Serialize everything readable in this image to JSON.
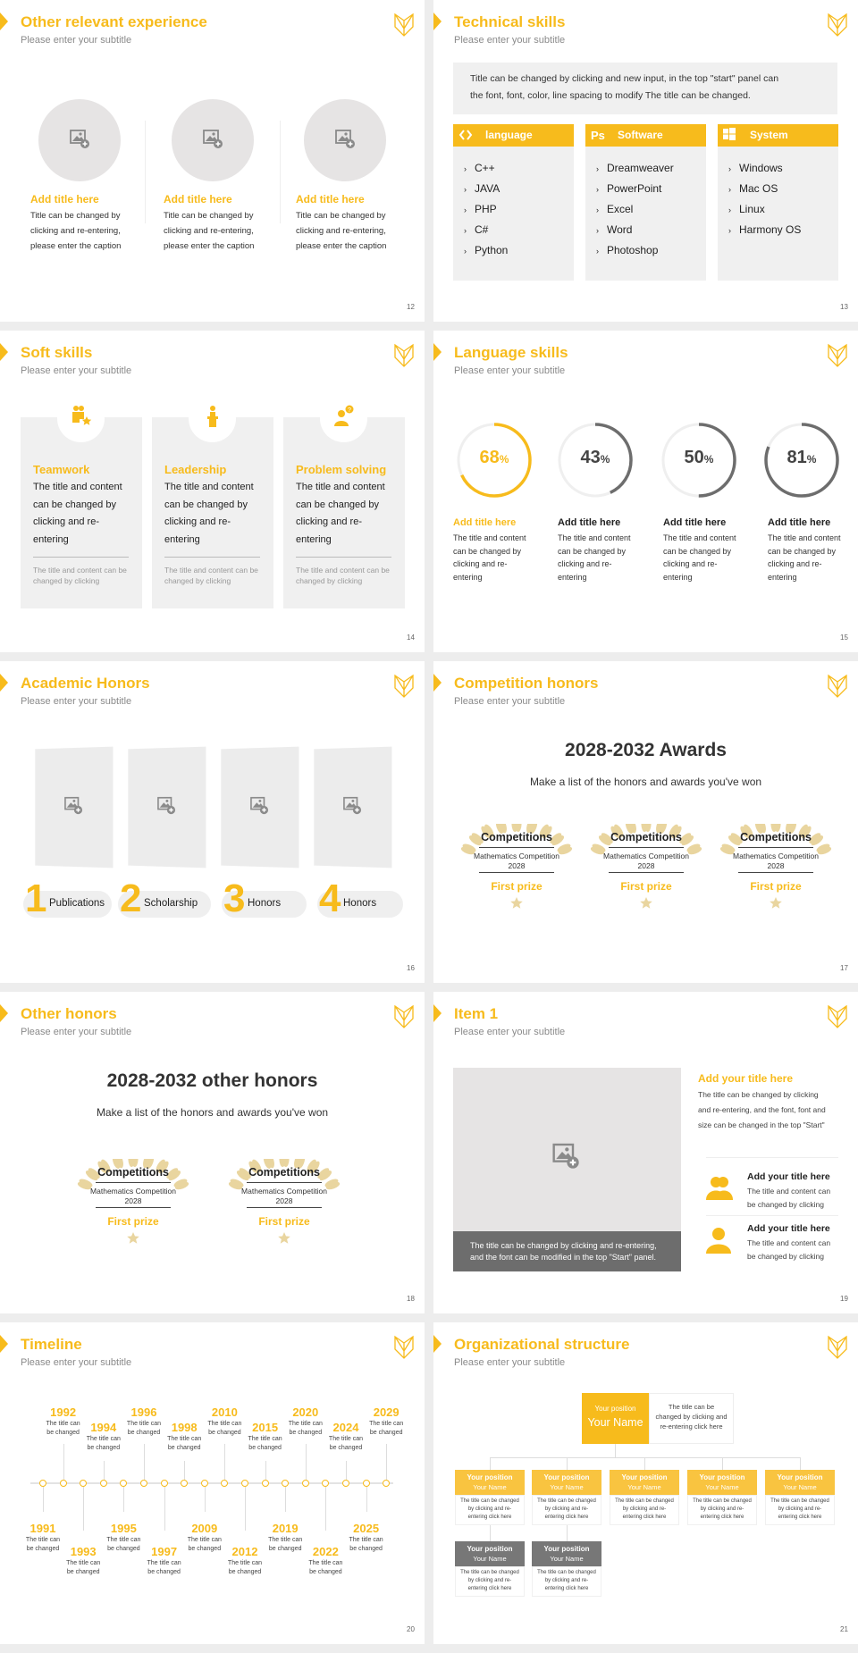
{
  "colors": {
    "accent": "#f7bb1c",
    "panel": "#f0f0f0",
    "dark": "#6d6d6d",
    "laurel": "#e9d59f"
  },
  "slides": [
    {
      "number": "12",
      "title": "Other relevant experience",
      "subtitle": "Please enter your subtitle"
    },
    {
      "number": "13",
      "title": "Technical skills",
      "subtitle": "Please enter your subtitle"
    },
    {
      "number": "14",
      "title": "Soft skills",
      "subtitle": "Please enter your subtitle"
    },
    {
      "number": "15",
      "title": "Language skills",
      "subtitle": "Please enter your subtitle"
    },
    {
      "number": "16",
      "title": "Academic Honors",
      "subtitle": "Please enter your subtitle"
    },
    {
      "number": "17",
      "title": "Competition honors",
      "subtitle": "Please enter your subtitle"
    },
    {
      "number": "18",
      "title": "Other honors",
      "subtitle": "Please enter your subtitle"
    },
    {
      "number": "19",
      "title": "Item 1",
      "subtitle": "Please enter your subtitle"
    },
    {
      "number": "20",
      "title": "Timeline",
      "subtitle": "Please enter your subtitle"
    },
    {
      "number": "21",
      "title": "Organizational structure",
      "subtitle": "Please enter your subtitle"
    }
  ],
  "s12": {
    "items": [
      {
        "title": "Add title here",
        "body": [
          "Title can be changed by",
          "clicking and re-entering,",
          "please enter the caption"
        ]
      },
      {
        "title": "Add title here",
        "body": [
          "Title can be changed by",
          "clicking and re-entering,",
          "please enter the caption"
        ]
      },
      {
        "title": "Add title here",
        "body": [
          "Title can be changed by",
          "clicking and re-entering,",
          "please enter the caption"
        ]
      }
    ]
  },
  "s13": {
    "intro": [
      "Title can be changed by clicking and new input, in the top \"start\" panel can",
      "the font, font, color, line spacing to modify The title can be changed."
    ],
    "columns": [
      {
        "label": "language",
        "icon": "code-icon",
        "items": [
          "C++",
          "JAVA",
          "PHP",
          "C#",
          "Python"
        ]
      },
      {
        "label": "Software",
        "icon": "photoshop-icon",
        "items": [
          "Dreamweaver",
          "PowerPoint",
          "Excel",
          "Word",
          "Photoshop"
        ]
      },
      {
        "label": "System",
        "icon": "windows-icon",
        "items": [
          "Windows",
          "Mac OS",
          "Linux",
          "Harmony OS"
        ]
      }
    ]
  },
  "s14": {
    "cards": [
      {
        "title": "Teamwork",
        "icon": "teamwork-icon",
        "body": [
          "The title and content",
          "can be changed by",
          "clicking and re-",
          "entering"
        ],
        "note": [
          "The title and content can be",
          "changed by clicking"
        ]
      },
      {
        "title": "Leadership",
        "icon": "podium-speaker-icon",
        "body": [
          "The title and content",
          "can be changed by",
          "clicking and re-",
          "entering"
        ],
        "note": [
          "The title and content can be",
          "changed by clicking"
        ]
      },
      {
        "title": "Problem solving",
        "icon": "question-person-icon",
        "body": [
          "The title and content",
          "can be changed by",
          "clicking and re-",
          "entering"
        ],
        "note": [
          "The title and content can be",
          "changed by clicking"
        ]
      }
    ]
  },
  "s15": {
    "skills": [
      {
        "percent": 68,
        "value": "68",
        "unit": "%",
        "title": "Add title here",
        "highlight": true,
        "body": [
          "The title and content",
          "can be changed by",
          "clicking and re-",
          "entering"
        ]
      },
      {
        "percent": 43,
        "value": "43",
        "unit": "%",
        "title": "Add title here",
        "highlight": false,
        "body": [
          "The title and content",
          "can be changed by",
          "clicking and re-",
          "entering"
        ]
      },
      {
        "percent": 50,
        "value": "50",
        "unit": "%",
        "title": "Add title here",
        "highlight": false,
        "body": [
          "The title and content",
          "can be changed by",
          "clicking and re-",
          "entering"
        ]
      },
      {
        "percent": 81,
        "value": "81",
        "unit": "%",
        "title": "Add title here",
        "highlight": false,
        "body": [
          "The title and content",
          "can be changed by",
          "clicking and re-",
          "entering"
        ]
      }
    ]
  },
  "s16": {
    "items": [
      {
        "num": "1",
        "label": "Publications"
      },
      {
        "num": "2",
        "label": "Scholarship"
      },
      {
        "num": "3",
        "label": "Honors"
      },
      {
        "num": "4",
        "label": "Honors"
      }
    ]
  },
  "s17": {
    "heading": "2028-2032 Awards",
    "sub": "Make a list of the honors and awards you've won",
    "awards": [
      {
        "category": "Competitions",
        "name": "Mathematics Competition",
        "year": "2028",
        "prize": "First prize"
      },
      {
        "category": "Competitions",
        "name": "Mathematics Competition",
        "year": "2028",
        "prize": "First prize"
      },
      {
        "category": "Competitions",
        "name": "Mathematics Competition",
        "year": "2028",
        "prize": "First prize"
      }
    ]
  },
  "s18": {
    "heading": "2028-2032 other honors",
    "sub": "Make a list of the honors and awards you've won",
    "awards": [
      {
        "category": "Competitions",
        "name": "Mathematics Competition",
        "year": "2028",
        "prize": "First prize"
      },
      {
        "category": "Competitions",
        "name": "Mathematics Competition",
        "year": "2028",
        "prize": "First prize"
      }
    ]
  },
  "s19": {
    "caption": [
      "The title can be changed by clicking and re-entering,",
      "and the font can be modified in the top \"Start\" panel."
    ],
    "title": "Add your title here",
    "body": [
      "The title can be changed by clicking",
      "and re-entering, and the font, font and",
      "size can be changed in the top \"Start\""
    ],
    "items": [
      {
        "icon": "users-icon",
        "title": "Add your title here",
        "body": [
          "The title and content can",
          "be changed by clicking"
        ]
      },
      {
        "icon": "user-icon",
        "title": "Add your title here",
        "body": [
          "The title and content can",
          "be changed by clicking"
        ]
      }
    ]
  },
  "s20": {
    "events": [
      {
        "year": "1991",
        "text": [
          "The title can",
          "be changed"
        ]
      },
      {
        "year": "1992",
        "text": [
          "The title can",
          "be changed"
        ]
      },
      {
        "year": "1993",
        "text": [
          "The title can",
          "be changed"
        ]
      },
      {
        "year": "1994",
        "text": [
          "The title can",
          "be changed"
        ]
      },
      {
        "year": "1995",
        "text": [
          "The title can",
          "be changed"
        ]
      },
      {
        "year": "1996",
        "text": [
          "The title can",
          "be changed"
        ]
      },
      {
        "year": "1997",
        "text": [
          "The title can",
          "be changed"
        ]
      },
      {
        "year": "1998",
        "text": [
          "The title can",
          "be changed"
        ]
      },
      {
        "year": "2009",
        "text": [
          "The title can",
          "be changed"
        ]
      },
      {
        "year": "2010",
        "text": [
          "The title can",
          "be changed"
        ]
      },
      {
        "year": "2012",
        "text": [
          "The title can",
          "be changed"
        ]
      },
      {
        "year": "2015",
        "text": [
          "The title can",
          "be changed"
        ]
      },
      {
        "year": "2019",
        "text": [
          "The title can",
          "be changed"
        ]
      },
      {
        "year": "2020",
        "text": [
          "The title can",
          "be changed"
        ]
      },
      {
        "year": "2022",
        "text": [
          "The title can",
          "be changed"
        ]
      },
      {
        "year": "2024",
        "text": [
          "The title can",
          "be changed"
        ]
      },
      {
        "year": "2025",
        "text": [
          "The title can",
          "be changed"
        ]
      },
      {
        "year": "2029",
        "text": [
          "The title can",
          "be changed"
        ]
      }
    ]
  },
  "s21": {
    "top": {
      "position": "Your position",
      "name": "Your Name",
      "desc": [
        "The title can be",
        "changed by clicking and",
        "re-entering click here"
      ]
    },
    "row": [
      {
        "position": "Your position",
        "name": "Your Name",
        "desc": [
          "The title can be changed",
          "by clicking and re-",
          "entering click here"
        ]
      },
      {
        "position": "Your position",
        "name": "Your Name",
        "desc": [
          "The title can be changed",
          "by clicking and re-",
          "entering click here"
        ]
      },
      {
        "position": "Your position",
        "name": "Your Name",
        "desc": [
          "The title can be changed",
          "by clicking and re-",
          "entering click here"
        ]
      },
      {
        "position": "Your position",
        "name": "Your Name",
        "desc": [
          "The title can be changed",
          "by clicking and re-",
          "entering click here"
        ]
      },
      {
        "position": "Your position",
        "name": "Your Name",
        "desc": [
          "The title can be changed",
          "by clicking and re-",
          "entering click here"
        ]
      }
    ],
    "row2": [
      {
        "position": "Your position",
        "name": "Your Name",
        "desc": [
          "The title can be changed",
          "by clicking and re-",
          "entering click here"
        ]
      },
      {
        "position": "Your position",
        "name": "Your Name",
        "desc": [
          "The title can be changed",
          "by clicking and re-",
          "entering click here"
        ]
      }
    ]
  }
}
